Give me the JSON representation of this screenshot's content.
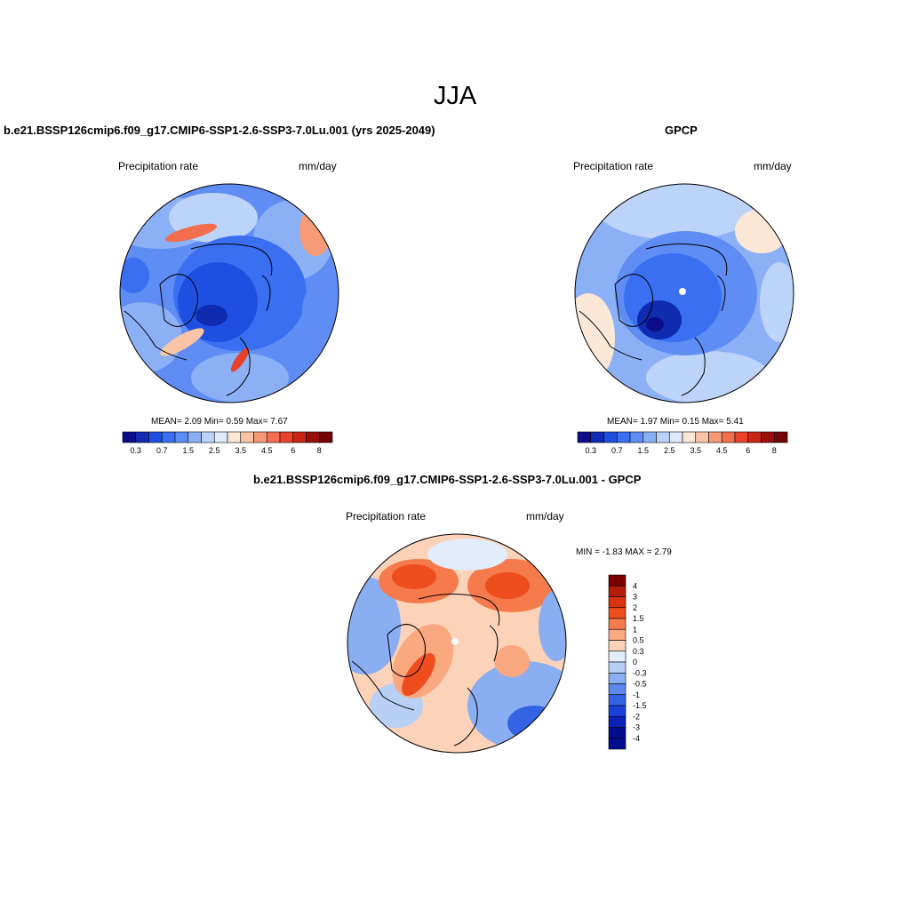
{
  "title": "JJA",
  "panels": [
    {
      "title": "b.e21.BSSP126cmip6.f09_g17.CMIP6-SSP1-2.6-SSP3-7.0Lu.001 (yrs 2025-2049)",
      "left_label": "Precipitation rate",
      "right_label": "mm/day",
      "stats": "MEAN=   2.09  Min=   0.59  Max=   7.67",
      "colorbar_labels": [
        "0.3",
        "0.7",
        "1.5",
        "2.5",
        "3.5",
        "4.5",
        "6",
        "8"
      ]
    },
    {
      "title": "GPCP",
      "left_label": "Precipitation rate",
      "right_label": "mm/day",
      "stats": "MEAN=   1.97  Min=   0.15  Max=   5.41",
      "colorbar_labels": [
        "0.3",
        "0.7",
        "1.5",
        "2.5",
        "3.5",
        "4.5",
        "6",
        "8"
      ]
    },
    {
      "title": "b.e21.BSSP126cmip6.f09_g17.CMIP6-SSP1-2.6-SSP3-7.0Lu.001 - GPCP",
      "left_label": "Precipitation rate",
      "right_label": "mm/day",
      "stats": "MIN =  -1.83 MAX =   2.79",
      "colorbar_labels": [
        "4",
        "3",
        "2",
        "1.5",
        "1",
        "0.5",
        "0.3",
        "0",
        "-0.3",
        "-0.5",
        "-1",
        "-1.5",
        "-2",
        "-3",
        "-4"
      ]
    }
  ],
  "colors": {
    "abs_scale": [
      "#0d0d8c",
      "#0f2bb0",
      "#1f4fe0",
      "#3a6ff2",
      "#5f8df4",
      "#8cb0f6",
      "#bdd4fa",
      "#dfeafb",
      "#fde8d8",
      "#fbc4a6",
      "#f79a78",
      "#f26e4e",
      "#e8432a",
      "#c92514",
      "#9a0f08",
      "#730404"
    ],
    "diff_scale": [
      "#7a0000",
      "#b31d05",
      "#d9330f",
      "#ee4d1e",
      "#f57a4c",
      "#f9a880",
      "#fcd3b8",
      "#e2ecfa",
      "#b8cff6",
      "#8aaef2",
      "#5d88ed",
      "#3463e6",
      "#1a40d8",
      "#0a22b8",
      "#020c8e"
    ]
  }
}
